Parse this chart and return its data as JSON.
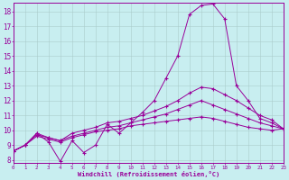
{
  "xlabel": "Windchill (Refroidissement éolien,°C)",
  "bg_color": "#c8eef0",
  "line_color": "#990099",
  "grid_color": "#aacccc",
  "xlim": [
    0,
    23
  ],
  "ylim": [
    7.8,
    18.6
  ],
  "xticks": [
    0,
    1,
    2,
    3,
    4,
    5,
    6,
    7,
    8,
    9,
    10,
    11,
    12,
    13,
    14,
    15,
    16,
    17,
    18,
    19,
    20,
    21,
    22,
    23
  ],
  "yticks": [
    8,
    9,
    10,
    11,
    12,
    13,
    14,
    15,
    16,
    17,
    18
  ],
  "series1_x": [
    0,
    1,
    2,
    3,
    4,
    5,
    6,
    7,
    8,
    9,
    10,
    11,
    12,
    13,
    14,
    15,
    16,
    17,
    18,
    19,
    20,
    21,
    22,
    23
  ],
  "series1_y": [
    8.6,
    9.0,
    9.8,
    9.2,
    7.9,
    9.3,
    8.5,
    9.0,
    10.4,
    9.8,
    10.5,
    11.2,
    12.0,
    13.5,
    15.0,
    17.8,
    18.4,
    18.5,
    17.5,
    13.0,
    12.0,
    10.8,
    10.5,
    10.1
  ],
  "series2_x": [
    0,
    1,
    2,
    3,
    4,
    5,
    6,
    7,
    8,
    9,
    10,
    11,
    12,
    13,
    14,
    15,
    16,
    17,
    18,
    19,
    20,
    21,
    22,
    23
  ],
  "series2_y": [
    8.6,
    9.0,
    9.8,
    9.5,
    9.3,
    9.8,
    10.0,
    10.2,
    10.5,
    10.6,
    10.8,
    11.0,
    11.3,
    11.6,
    12.0,
    12.5,
    12.9,
    12.8,
    12.4,
    12.0,
    11.5,
    11.0,
    10.7,
    10.1
  ],
  "series3_x": [
    0,
    1,
    2,
    3,
    4,
    5,
    6,
    7,
    8,
    9,
    10,
    11,
    12,
    13,
    14,
    15,
    16,
    17,
    18,
    19,
    20,
    21,
    22,
    23
  ],
  "series3_y": [
    8.6,
    9.0,
    9.7,
    9.5,
    9.3,
    9.6,
    9.8,
    10.0,
    10.2,
    10.3,
    10.5,
    10.7,
    10.9,
    11.1,
    11.4,
    11.7,
    12.0,
    11.7,
    11.4,
    11.1,
    10.8,
    10.5,
    10.3,
    10.1
  ],
  "series4_x": [
    0,
    1,
    2,
    3,
    4,
    5,
    6,
    7,
    8,
    9,
    10,
    11,
    12,
    13,
    14,
    15,
    16,
    17,
    18,
    19,
    20,
    21,
    22,
    23
  ],
  "series4_y": [
    8.6,
    9.0,
    9.6,
    9.4,
    9.2,
    9.5,
    9.7,
    9.9,
    10.0,
    10.1,
    10.3,
    10.4,
    10.5,
    10.6,
    10.7,
    10.8,
    10.9,
    10.8,
    10.6,
    10.4,
    10.2,
    10.1,
    10.0,
    10.1
  ]
}
